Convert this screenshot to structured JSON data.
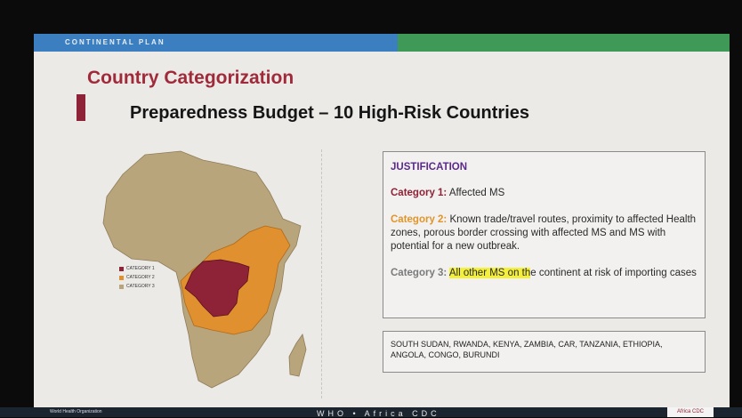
{
  "header": {
    "label": "CONTINENTAL PLAN"
  },
  "title": "Country Categorization",
  "subtitle": "Preparedness Budget – 10 High-Risk Countries",
  "legend": [
    "CATEGORY 1",
    "CATEGORY 2",
    "CATEGORY 3"
  ],
  "justification": {
    "heading": "JUSTIFICATION",
    "category_1": {
      "label": "Category 1:",
      "text": "Affected MS"
    },
    "category_2": {
      "label": "Category 2:",
      "text": "Known trade/travel routes, proximity to affected Health zones, porous border crossing with affected MS and MS with potential for a new outbreak."
    },
    "category_3": {
      "label": "Category 3:",
      "highlighted": "All other MS on th",
      "text": "e continent at risk of importing cases"
    }
  },
  "countries": "SOUTH SUDAN, RWANDA, KENYA, ZAMBIA, CAR, TANZANIA, ETHIOPIA, ANGOLA,  CONGO, BURUNDI",
  "footer": {
    "center": "WHO • Africa CDC",
    "left": "World Health Organization",
    "right": "Africa CDC"
  }
}
